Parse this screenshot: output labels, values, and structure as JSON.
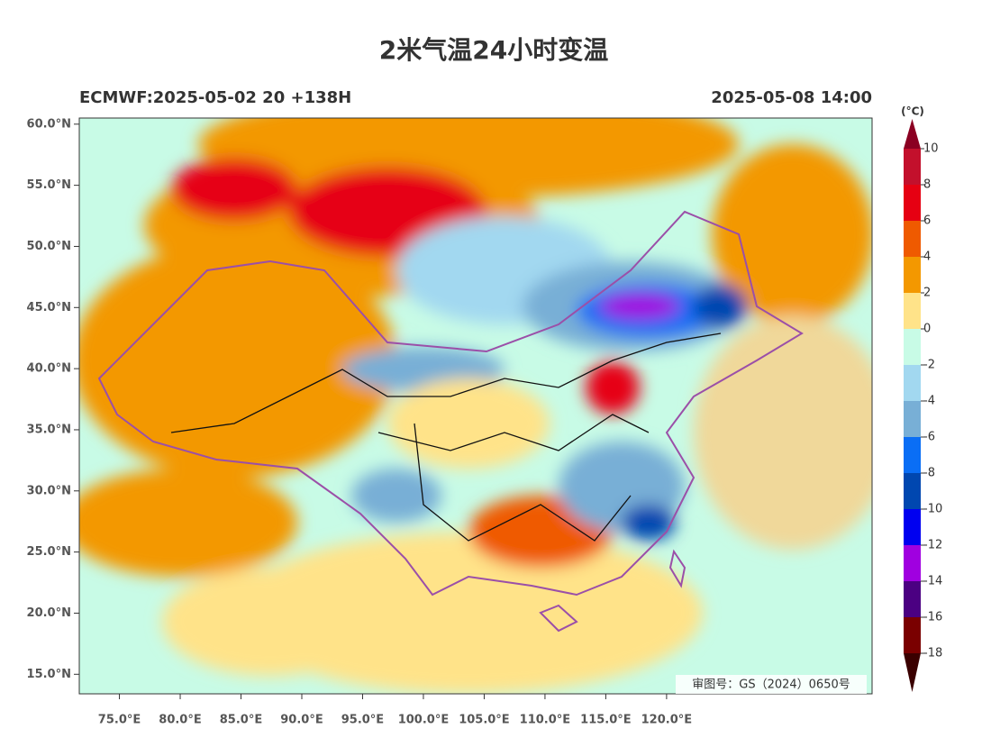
{
  "map": {
    "title": "2米气温24小时变温",
    "subtitle_left": "ECMWF:2025-05-02 20 +138H",
    "subtitle_right": "2025-05-08 14:00",
    "xlim": [
      71.7,
      136.9
    ],
    "ylim": [
      13.4,
      60.5
    ],
    "yticks": [
      {
        "value": 60,
        "label": "60.0°N"
      },
      {
        "value": 55,
        "label": "55.0°N"
      },
      {
        "value": 50,
        "label": "50.0°N"
      },
      {
        "value": 45,
        "label": "45.0°N"
      },
      {
        "value": 40,
        "label": "40.0°N"
      },
      {
        "value": 35,
        "label": "35.0°N"
      },
      {
        "value": 30,
        "label": "30.0°N"
      },
      {
        "value": 25,
        "label": "25.0°N"
      },
      {
        "value": 20,
        "label": "20.0°N"
      },
      {
        "value": 15,
        "label": "15.0°N"
      }
    ],
    "xticks": [
      {
        "value": 75,
        "label": "75.0°E"
      },
      {
        "value": 80,
        "label": "80.0°E"
      },
      {
        "value": 85,
        "label": "85.0°E"
      },
      {
        "value": 90,
        "label": "90.0°E"
      },
      {
        "value": 95,
        "label": "95.0°E"
      },
      {
        "value": 100,
        "label": "100.0°E"
      },
      {
        "value": 105,
        "label": "105.0°E"
      },
      {
        "value": 110,
        "label": "110.0°E"
      },
      {
        "value": 115,
        "label": "115.0°E"
      },
      {
        "value": 120,
        "label": "120.0°E"
      }
    ],
    "colorbar": {
      "unit": "(°C)",
      "levels": [
        10,
        8,
        6,
        4,
        2,
        0,
        -2,
        -4,
        -6,
        -8,
        -10,
        -12,
        -14,
        -16,
        -18
      ],
      "colors": [
        "#8b0022",
        "#c3102c",
        "#e60012",
        "#ef5a00",
        "#f39800",
        "#ffe389",
        "#c8fbe6",
        "#a2d8f0",
        "#78afd6",
        "#0a6ef5",
        "#0047b0",
        "#0000f0",
        "#a000e0",
        "#4b0082",
        "#7a0000",
        "#3a0000"
      ]
    },
    "approval": "审图号：GS（2024）0650号"
  }
}
